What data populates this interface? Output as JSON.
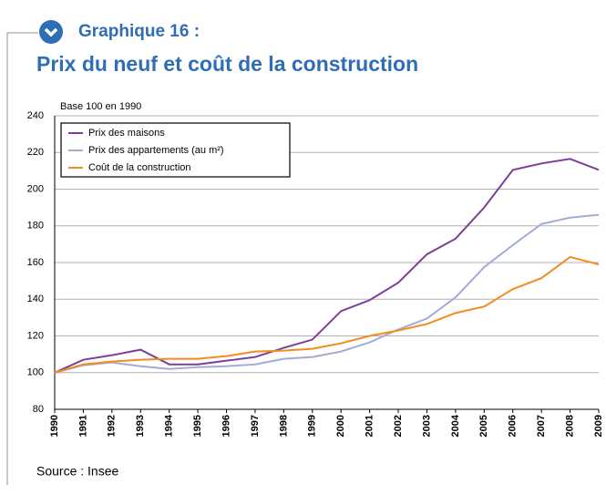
{
  "chart_data": {
    "type": "line",
    "label": "Graphique 16 :",
    "title": "Prix du neuf et coût de la construction",
    "y_label": "Base 100 en 1990",
    "source": "Source : Insee",
    "categories": [
      "1990",
      "1991",
      "1992",
      "1993",
      "1994",
      "1995",
      "1996",
      "1997",
      "1998",
      "1999",
      "2000",
      "2001",
      "2002",
      "2003",
      "2004",
      "2005",
      "2006",
      "2007",
      "2008",
      "2009"
    ],
    "series": [
      {
        "name": "Prix des maisons",
        "color": "#7b3f98",
        "values": [
          100,
          107,
          109.5,
          112.5,
          104.5,
          104.5,
          106.5,
          108.5,
          113.5,
          118,
          133.5,
          139.5,
          149,
          164.5,
          173,
          190,
          210.5,
          214,
          216.5,
          210.5
        ]
      },
      {
        "name": "Prix des appartements (au m²)",
        "color": "#a3abd8",
        "values": [
          100,
          104,
          105.5,
          103.5,
          102,
          103,
          103.5,
          104.5,
          107.5,
          108.5,
          111.5,
          116.5,
          123.5,
          129.5,
          141,
          157.5,
          169.5,
          181,
          184.5,
          186
        ]
      },
      {
        "name": "Coût de la construction",
        "color": "#f28c1e",
        "values": [
          100,
          104.5,
          106,
          107,
          107.5,
          107.5,
          109,
          111.5,
          112,
          113,
          116,
          120,
          123,
          126.5,
          132.5,
          136,
          145.5,
          151.5,
          163,
          159
        ]
      }
    ],
    "ylim": [
      80,
      240
    ],
    "yticks": [
      80,
      100,
      120,
      140,
      160,
      180,
      200,
      220,
      240
    ],
    "grid": true,
    "legend": "upper left"
  }
}
